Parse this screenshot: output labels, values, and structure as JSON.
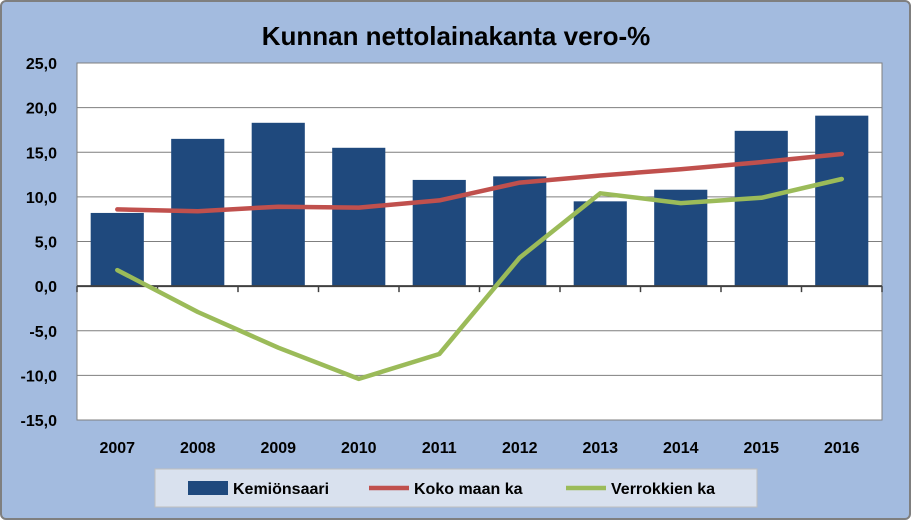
{
  "chart_data": {
    "type": "bar",
    "title": "Kunnan nettolainakanta vero-%",
    "categories": [
      "2007",
      "2008",
      "2009",
      "2010",
      "2011",
      "2012",
      "2013",
      "2014",
      "2015",
      "2016"
    ],
    "ylim": [
      -15,
      25
    ],
    "yticks": [
      "25,0",
      "20,0",
      "15,0",
      "10,0",
      "5,0",
      "0,0",
      "-5,0",
      "-10,0",
      "-15,0"
    ],
    "grid": true,
    "legend_position": "bottom",
    "series": [
      {
        "name": "Kemiönsaari",
        "type": "bar",
        "color": "#1f497d",
        "values": [
          8.2,
          16.5,
          18.3,
          15.5,
          11.9,
          12.3,
          9.5,
          10.8,
          17.4,
          19.1
        ]
      },
      {
        "name": "Koko maan ka",
        "type": "line",
        "color": "#c0504d",
        "values": [
          8.6,
          8.4,
          8.9,
          8.8,
          9.6,
          11.6,
          12.4,
          13.1,
          13.9,
          14.8
        ]
      },
      {
        "name": "Verrokkien ka",
        "type": "line",
        "color": "#9bbb59",
        "values": [
          1.8,
          -2.9,
          -6.9,
          -10.4,
          -7.6,
          3.2,
          10.4,
          9.3,
          9.9,
          12.0
        ]
      }
    ]
  }
}
